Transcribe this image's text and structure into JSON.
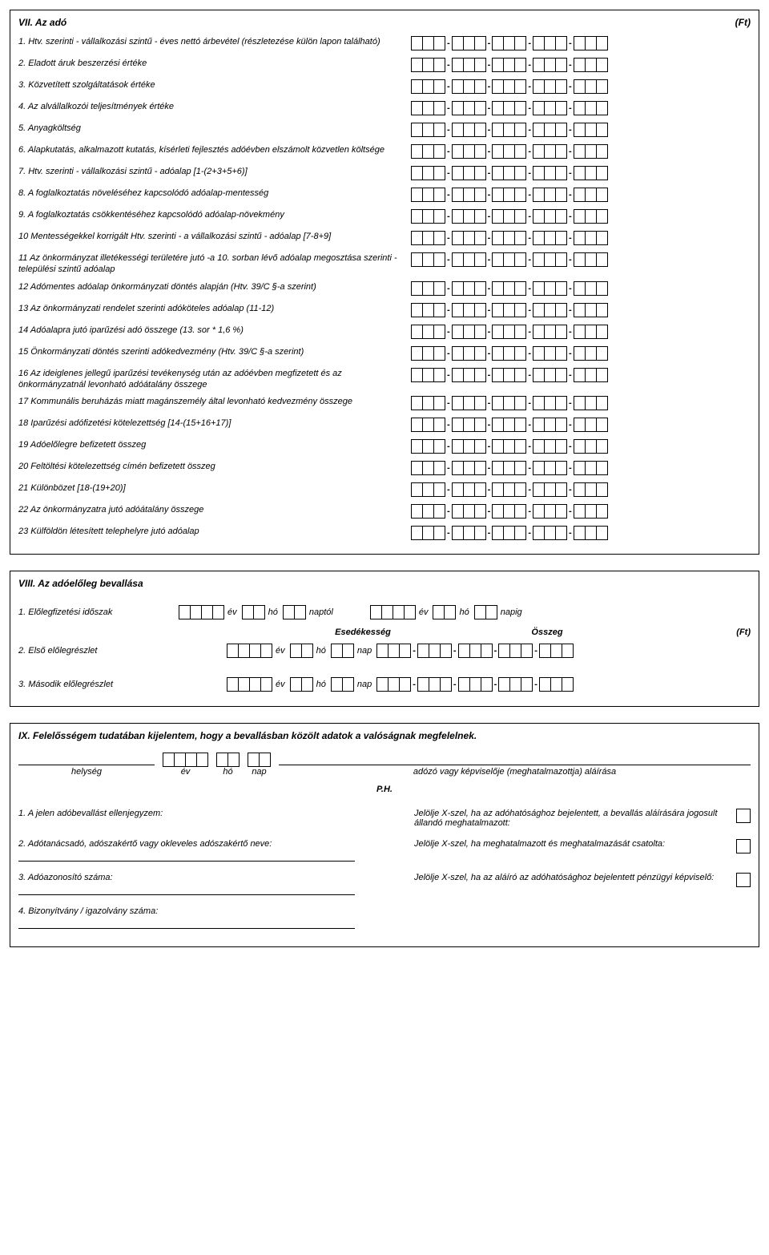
{
  "sectionVII": {
    "title": "VII. Az adó",
    "unit": "(Ft)",
    "rows": [
      {
        "num": "1.",
        "text": "Htv. szerinti - vállalkozási szintű - éves nettó árbevétel (részletezése külön lapon található)"
      },
      {
        "num": "2.",
        "text": "Eladott áruk beszerzési értéke"
      },
      {
        "num": "3.",
        "text": "Közvetített szolgáltatások értéke"
      },
      {
        "num": "4.",
        "text": "Az alvállalkozói teljesítmények értéke"
      },
      {
        "num": "5.",
        "text": "Anyagköltség"
      },
      {
        "num": "6.",
        "text": "Alapkutatás, alkalmazott kutatás, kísérleti fejlesztés adóévben elszámolt közvetlen költsége"
      },
      {
        "num": "7.",
        "text": "Htv. szerinti - vállalkozási szintű - adóalap [1-(2+3+5+6)]"
      },
      {
        "num": "8.",
        "text": "A foglalkoztatás növeléséhez kapcsolódó adóalap-mentesség"
      },
      {
        "num": "9.",
        "text": "A foglalkoztatás csökkentéséhez kapcsolódó adóalap-növekmény"
      },
      {
        "num": "10",
        "text": "Mentességekkel korrigált Htv. szerinti - a vállalkozási szintű - adóalap [7-8+9]"
      },
      {
        "num": "11",
        "text": "Az önkormányzat illetékességi területére jutó -a 10. sorban lévő adóalap megosztása szerinti - települési szintű adóalap"
      },
      {
        "num": "12",
        "text": "Adómentes adóalap önkormányzati döntés alapján (Htv. 39/C §-a szerint)"
      },
      {
        "num": "13",
        "text": "Az önkormányzati rendelet szerinti adóköteles adóalap (11-12)"
      },
      {
        "num": "14",
        "text": "Adóalapra jutó iparűzési adó összege (13. sor * 1,6 %)"
      },
      {
        "num": "15",
        "text": "Önkormányzati döntés szerinti adókedvezmény (Htv. 39/C §-a szerint)"
      },
      {
        "num": "16",
        "text": "Az ideiglenes jellegű iparűzési tevékenység után az adóévben megfizetett és az önkormányzatnál levonható adóátalány összege"
      },
      {
        "num": "17",
        "text": "Kommunális beruházás miatt magánszemély által levonható kedvezmény összege"
      },
      {
        "num": "18",
        "text": "Iparűzési adófizetési kötelezettség [14-(15+16+17)]"
      },
      {
        "num": "19",
        "text": "Adóelőlegre befizetett összeg"
      },
      {
        "num": "20",
        "text": "Feltöltési kötelezettség címén befizetett összeg"
      },
      {
        "num": "21",
        "text": "Különbözet [18-(19+20)]"
      },
      {
        "num": "22",
        "text": "Az önkormányzatra jutó adóátalány összege"
      },
      {
        "num": "23",
        "text": "Külföldön létesített telephelyre jutó adóalap"
      }
    ]
  },
  "sectionVIII": {
    "title": "VIII. Az adóelőleg bevallása",
    "row1_label": "1. Előlegfizetési időszak",
    "row2_label": "2. Első előlegrészlet",
    "row3_label": "3. Második előlegrészlet",
    "ev": "év",
    "ho": "hó",
    "nap": "nap",
    "naptol": "naptól",
    "napig": "napig",
    "esed": "Esedékesség",
    "osszeg": "Összeg",
    "ft": "(Ft)"
  },
  "sectionIX": {
    "title": "IX. Felelősségem tudatában kijelentem, hogy a bevallásban közölt adatok a valóságnak megfelelnek.",
    "helyseg": "helység",
    "ev": "év",
    "ho": "hó",
    "nap": "nap",
    "alairas": "adózó vagy képviselője (meghatalmazottja) aláírása",
    "ph": "P.H.",
    "item1": "1. A jelen adóbevallást ellenjegyzem:",
    "item2": "2. Adótanácsadó, adószakértő vagy okleveles adószakértő neve:",
    "item3": "3. Adóazonosító száma:",
    "item4": "4. Bizonyítvány / igazolvány száma:",
    "check1": "Jelölje X-szel, ha az adóhatósághoz bejelentett, a bevallás aláírására jogosult állandó meghatalmazott:",
    "check2": "Jelölje X-szel, ha meghatalmazott és meghatalmazását csatolta:",
    "check3": "Jelölje X-szel, ha az aláíró az adóhatósághoz bejelentett pénzügyi képviselő:"
  }
}
